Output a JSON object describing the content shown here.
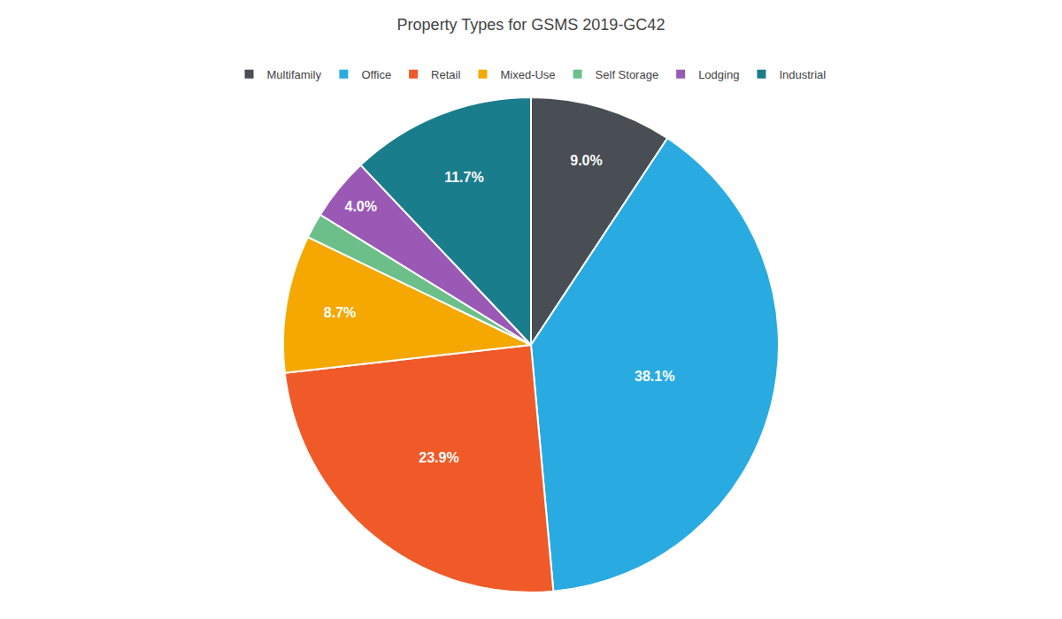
{
  "chart_data": {
    "type": "pie",
    "title": "Property Types for GSMS 2019-GC42",
    "categories": [
      "Multifamily",
      "Office",
      "Retail",
      "Mixed-Use",
      "Self Storage",
      "Lodging",
      "Industrial"
    ],
    "values": [
      9.0,
      38.1,
      23.9,
      8.7,
      1.6,
      4.0,
      11.7
    ],
    "value_labels": [
      "9.0%",
      "38.1%",
      "23.9%",
      "8.7%",
      null,
      "4.0%",
      "11.7%"
    ],
    "colors": [
      "#484e54",
      "#29abe2",
      "#f05a28",
      "#f5a800",
      "#6dbf8a",
      "#9b59b6",
      "#1a7d8c"
    ],
    "data_labels": true,
    "legend": "top"
  }
}
